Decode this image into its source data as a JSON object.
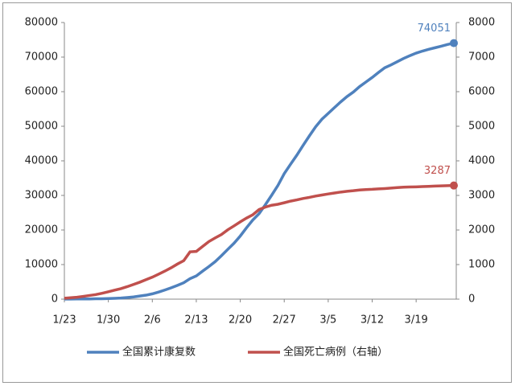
{
  "chart_data": {
    "type": "line",
    "categories": [
      "1/23",
      null,
      null,
      null,
      null,
      null,
      null,
      "1/30",
      null,
      null,
      null,
      null,
      null,
      null,
      "2/6",
      null,
      null,
      null,
      null,
      null,
      null,
      "2/13",
      null,
      null,
      null,
      null,
      null,
      null,
      "2/20",
      null,
      null,
      null,
      null,
      null,
      null,
      "2/27",
      null,
      null,
      null,
      null,
      null,
      null,
      "3/5",
      null,
      null,
      null,
      null,
      null,
      null,
      "3/12",
      null,
      null,
      null,
      null,
      null,
      null,
      "3/19",
      null,
      null,
      null,
      null,
      null,
      null
    ],
    "series": [
      {
        "name": "全国累计康复数",
        "color": "#4f81bd",
        "axis": "y",
        "values": [
          34,
          38,
          49,
          51,
          60,
          103,
          124,
          171,
          243,
          328,
          475,
          632,
          892,
          1153,
          1540,
          2050,
          2649,
          3281,
          3996,
          4740,
          5911,
          6723,
          8096,
          9419,
          10844,
          12552,
          14376,
          16155,
          18264,
          20659,
          22888,
          24734,
          27323,
          30053,
          32898,
          36291,
          39002,
          41625,
          44462,
          47204,
          49856,
          52045,
          53726,
          55404,
          57065,
          58600,
          59897,
          61475,
          62793,
          64111,
          65541,
          66911,
          67749,
          68679,
          69601,
          70420,
          71150,
          71740,
          72244,
          72703,
          73159,
          73650,
          74051
        ]
      },
      {
        "name": "全国死亡病例（右轴）",
        "color": "#c0504d",
        "axis": "y2",
        "values": [
          25,
          41,
          56,
          80,
          106,
          132,
          170,
          213,
          259,
          304,
          361,
          425,
          490,
          563,
          636,
          722,
          811,
          908,
          1016,
          1113,
          1368,
          1380,
          1523,
          1665,
          1770,
          1868,
          2004,
          2118,
          2236,
          2345,
          2442,
          2592,
          2663,
          2715,
          2744,
          2788,
          2835,
          2870,
          2912,
          2943,
          2981,
          3012,
          3042,
          3070,
          3097,
          3119,
          3136,
          3158,
          3169,
          3176,
          3189,
          3199,
          3213,
          3226,
          3237,
          3245,
          3248,
          3255,
          3261,
          3270,
          3277,
          3281,
          3287
        ]
      }
    ],
    "ylim": [
      0,
      80000
    ],
    "yticks": [
      0,
      10000,
      20000,
      30000,
      40000,
      50000,
      60000,
      70000,
      80000
    ],
    "y2lim": [
      0,
      8000
    ],
    "y2ticks": [
      0,
      1000,
      2000,
      3000,
      4000,
      5000,
      6000,
      7000,
      8000
    ],
    "legend": "bottom"
  }
}
